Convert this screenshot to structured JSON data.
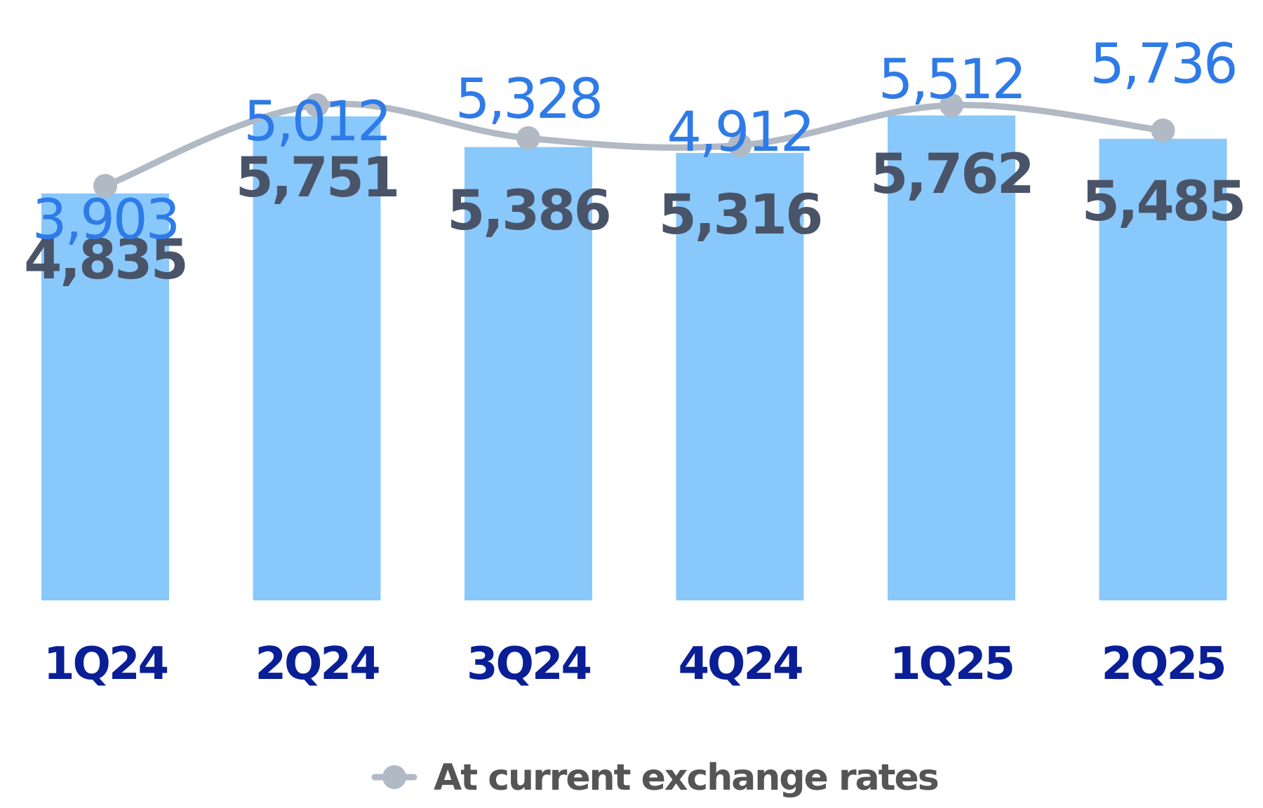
{
  "chart_data": {
    "type": "bar",
    "categories": [
      "1Q24",
      "2Q24",
      "3Q24",
      "4Q24",
      "1Q25",
      "2Q25"
    ],
    "series": [
      {
        "kind": "bar",
        "values": [
          4835,
          5751,
          5386,
          5316,
          5762,
          5485
        ],
        "labels": [
          "4,835",
          "5,751",
          "5,386",
          "5,316",
          "5,762",
          "5,485"
        ]
      },
      {
        "name": "At current exchange rates",
        "kind": "line",
        "values": [
          3903,
          5012,
          5328,
          4912,
          5512,
          5736
        ],
        "labels": [
          "3,903",
          "5,012",
          "5,328",
          "4,912",
          "5,512",
          "5,736"
        ]
      }
    ],
    "legend": {
      "position": "bottom",
      "entries": [
        "At current exchange rates"
      ]
    },
    "grid": false,
    "colors": {
      "bar": "#89C8FB",
      "bar_label": "#4A5468",
      "line": "#B0B9C4",
      "line_label": "#2E7BE8",
      "category": "#0A1E96",
      "legend_text": "#555555"
    }
  }
}
